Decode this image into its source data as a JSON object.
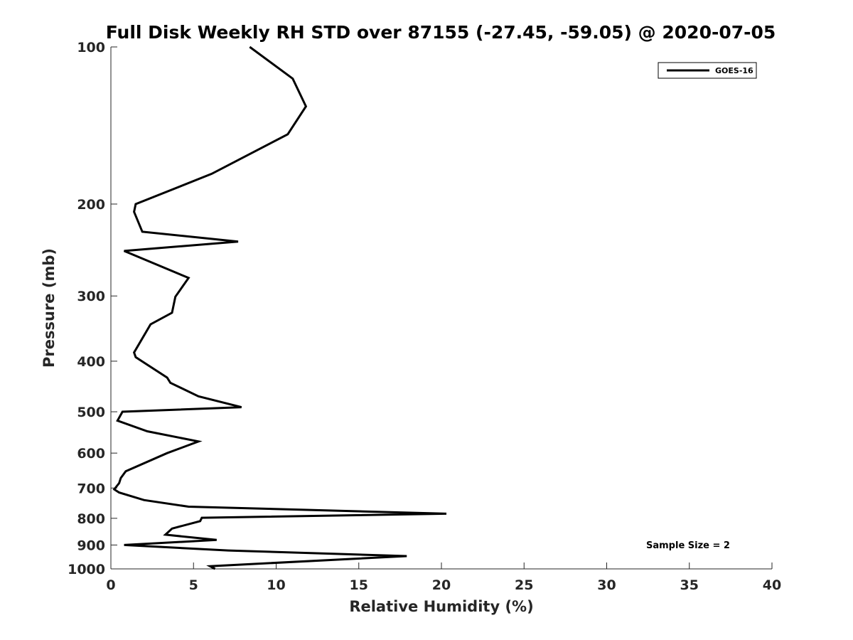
{
  "chart_data": {
    "type": "line",
    "title": "Full Disk Weekly RH STD over 87155 (-27.45, -59.05) @ 2020-07-05",
    "xlabel": "Relative Humidity (%)",
    "ylabel": "Pressure (mb)",
    "xlim": [
      0,
      40
    ],
    "ylim": [
      1000,
      100
    ],
    "yscale": "log",
    "xticks": [
      0,
      5,
      10,
      15,
      20,
      25,
      30,
      35,
      40
    ],
    "yticks": [
      100,
      200,
      300,
      400,
      500,
      600,
      700,
      800,
      900,
      1000
    ],
    "legend": {
      "position": "top-right",
      "entries": [
        "GOES-16"
      ]
    },
    "annotation": "Sample Size = 2",
    "series": [
      {
        "name": "GOES-16",
        "x": [
          8.4,
          11.0,
          11.8,
          10.7,
          6.1,
          1.5,
          1.4,
          1.9,
          7.7,
          0.8,
          4.7,
          3.9,
          3.7,
          2.4,
          1.4,
          1.5,
          3.4,
          3.6,
          5.3,
          7.9,
          0.7,
          0.4,
          2.2,
          5.3,
          3.4,
          0.9,
          0.6,
          0.5,
          0.2,
          0.5,
          2.0,
          4.7,
          20.3,
          5.5,
          5.4,
          3.7,
          3.3,
          6.4,
          0.8,
          7.1,
          17.9,
          6.0,
          6.3
        ],
        "y": [
          100,
          115,
          130,
          147,
          175,
          200,
          207,
          226,
          236,
          246,
          277,
          301,
          323,
          340,
          385,
          393,
          430,
          440,
          467,
          490,
          500,
          520,
          545,
          570,
          600,
          650,
          670,
          685,
          704,
          714,
          738,
          760,
          784,
          798,
          810,
          837,
          860,
          880,
          900,
          922,
          945,
          988,
          1000
        ]
      }
    ]
  }
}
